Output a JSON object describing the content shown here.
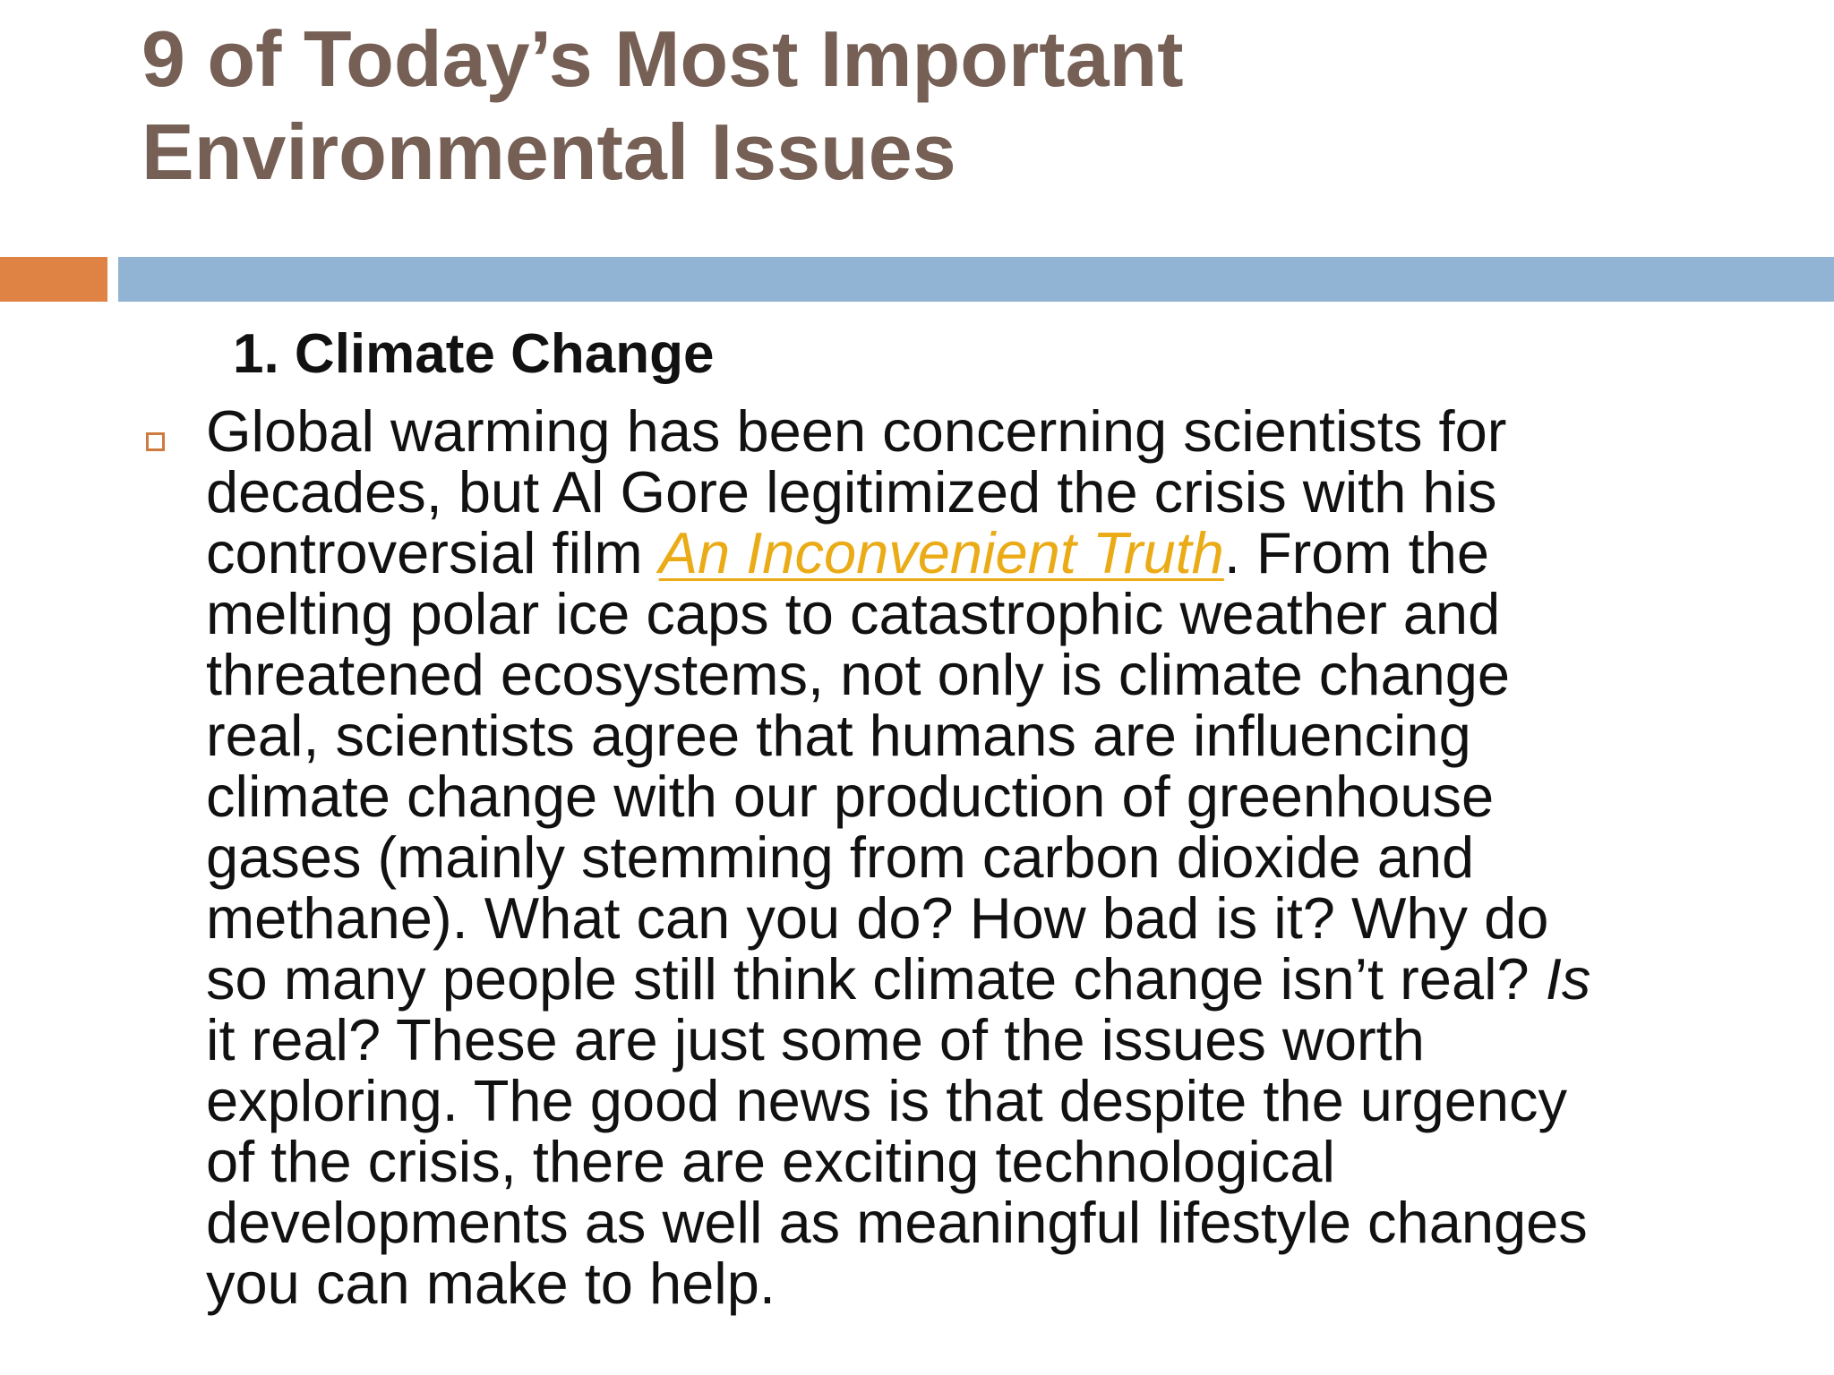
{
  "slide": {
    "title_line_1": "9 of Today’s Most Important",
    "title_line_2": "Environmental Issues",
    "section_heading": "1. Climate Change",
    "accent_colors": {
      "title": "#765f55",
      "bar_orange": "#df8344",
      "bar_blue": "#92b4d4",
      "link": "#eaab17",
      "bullet": "#cf7a3e"
    },
    "bullet_icon": "hollow-square-bullet-icon",
    "body": {
      "line_1": "Global warming has been concerning scientists for",
      "line_2": "decades, but Al Gore legitimized the crisis with his",
      "line_3_before": "controversial film ",
      "link_text": "An Inconvenient Truth",
      "line_3_after": ". From the",
      "line_4": "melting polar ice caps to catastrophic weather and",
      "line_5": "threatened ecosystems, not only is climate change",
      "line_6": "real, scientists agree that humans are influencing",
      "line_7": "climate change with our production of greenhouse",
      "line_8": "gases (mainly stemming from carbon dioxide and",
      "line_9": "methane). What can you do? How bad is it? Why do",
      "line_10_before": "so many people still think climate change isn’t real? ",
      "line_10_italic": "Is",
      "line_11": "it real? These are just some of the issues worth",
      "line_12": "exploring. The good news is that despite the urgency",
      "line_13": "of the crisis, there are exciting technological",
      "line_14": "developments as well as meaningful lifestyle changes",
      "line_15": "you can make to help."
    }
  }
}
